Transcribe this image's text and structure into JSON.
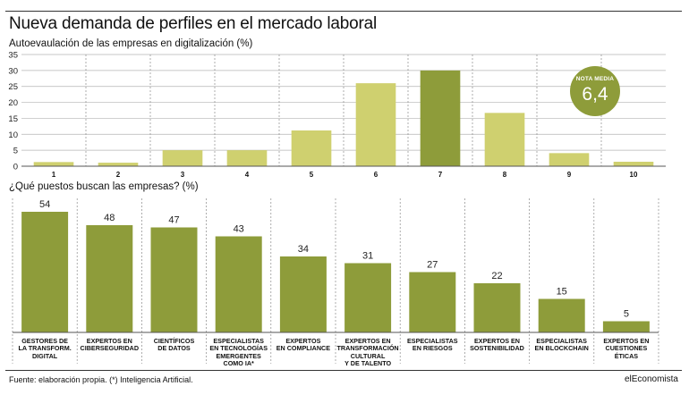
{
  "header": {
    "title": "Nueva demanda de perfiles en el mercado laboral",
    "subtitle1": "Autoevaulación de las empresas en digitalización (%)",
    "subtitle2": "¿Qué puestos buscan las empresas? (%)"
  },
  "badge": {
    "label": "NOTA MEDIA",
    "value": "6,4"
  },
  "footer": {
    "source": "Fuente: elaboración propia. (*) Inteligencia Artificial.",
    "brand": "elEconomista"
  },
  "colors": {
    "light_bar": "#cfd06f",
    "highlight_bar": "#8e9c3a",
    "dark_bar": "#8e9c3a",
    "grid": "#9a9a9a"
  },
  "chart_data": [
    {
      "type": "bar",
      "title": "Autoevaulación de las empresas en digitalización (%)",
      "categories": [
        "1",
        "2",
        "3",
        "4",
        "5",
        "6",
        "7",
        "8",
        "9",
        "10"
      ],
      "values": [
        1.3,
        1.1,
        5,
        5,
        11.2,
        26,
        30,
        16.7,
        4.1,
        1.4
      ],
      "highlight_category": "7",
      "ylim": [
        0,
        35
      ],
      "yticks": [
        0,
        5,
        10,
        15,
        20,
        25,
        30,
        35
      ],
      "grid": true
    },
    {
      "type": "bar",
      "title": "¿Qué puestos buscan las empresas? (%)",
      "categories": [
        "GESTORES DE\nLA TRANSFORM.\nDIGITAL",
        "EXPERTOS EN\nCIBERSEGURIDAD",
        "CIENTÍFICOS\nDE DATOS",
        "ESPECIALISTAS\nEN TECNOLOGÍAS\nEMERGENTES\nCOMO IA*",
        "EXPERTOS\nEN COMPLIANCE",
        "EXPERTOS EN\nTRANSFORMACIÓN\nCULTURAL\nY DE TALENTO",
        "ESPECIALISTAS\nEN RIESGOS",
        "EXPERTOS EN\nSOSTENIBILIDAD",
        "ESPECIALISTAS\nEN BLOCKCHAIN",
        "EXPERTOS EN\nCUESTIONES\nÉTICAS"
      ],
      "values": [
        54,
        48,
        47,
        43,
        34,
        31,
        27,
        22,
        15,
        5
      ],
      "value_labels": [
        "54",
        "48",
        "47",
        "43",
        "34",
        "31",
        "27",
        "22",
        "15",
        "5"
      ],
      "ylim": [
        0,
        60
      ],
      "grid": true
    }
  ]
}
